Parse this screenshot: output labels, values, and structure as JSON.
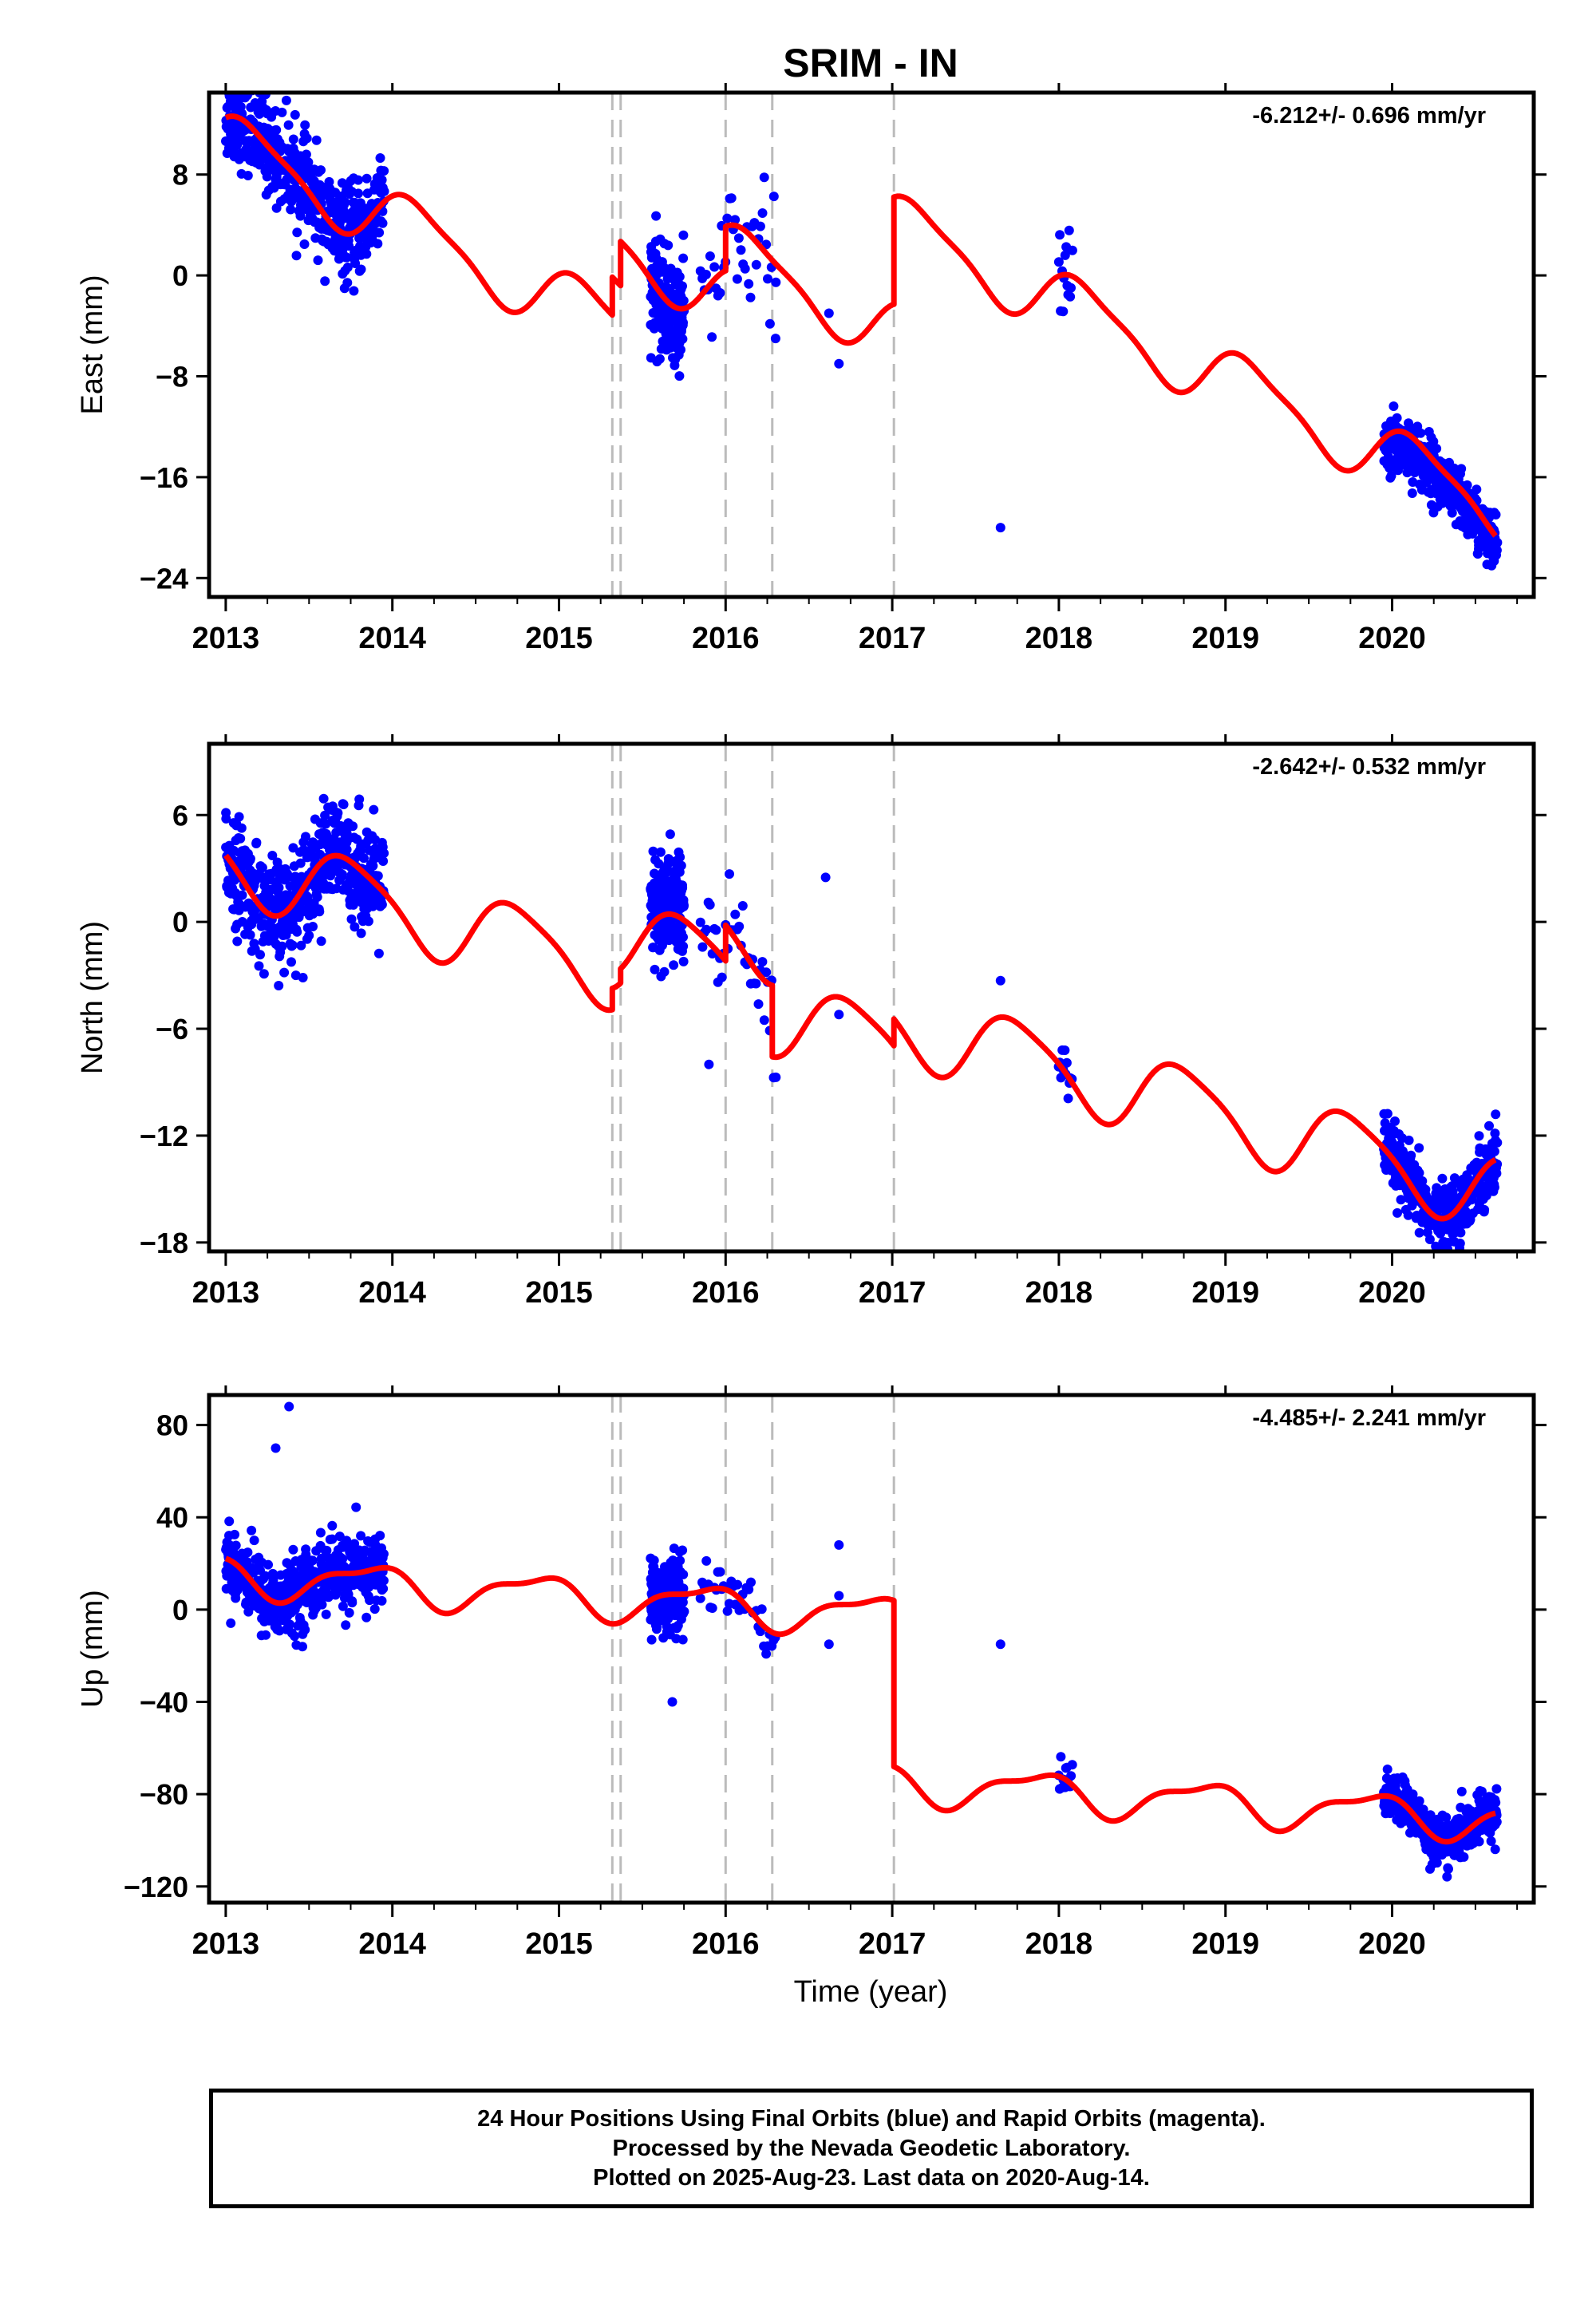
{
  "title": "SRIM - IN",
  "xlabel": "Time (year)",
  "footer": {
    "line1": "24 Hour Positions Using Final Orbits (blue) and Rapid Orbits (magenta).",
    "line2": "Processed by the Nevada Geodetic Laboratory.",
    "line3": "Plotted on 2025-Aug-23. Last data on 2020-Aug-14."
  },
  "colors": {
    "final_orbits": "#0000ff",
    "rapid_orbits": "#ff00ff",
    "model": "#ff0000",
    "event_lines": "#bbbbbb"
  },
  "chart_data": [
    {
      "type": "scatter",
      "component": "east",
      "ylabel": "East (mm)",
      "rate_text": "-6.212+/- 0.696 mm/yr",
      "xlim": [
        2012.9,
        2020.85
      ],
      "ylim": [
        -25.5,
        14.5
      ],
      "xticks": [
        2013,
        2014,
        2015,
        2016,
        2017,
        2018,
        2019,
        2020
      ],
      "yticks": [
        8,
        0,
        -8,
        -16,
        -24
      ],
      "event_lines": [
        2015.32,
        2015.37,
        2016.0,
        2016.28,
        2017.01
      ],
      "trend": -6.212,
      "amp1": 2.4,
      "phase1": 0.2,
      "amp2": 0.6,
      "phase2": 0.5,
      "offsets": [
        [
          2015.32,
          3.0
        ],
        [
          2015.37,
          3.5
        ],
        [
          2016.0,
          3.5
        ],
        [
          2016.28,
          0.0
        ],
        [
          2017.01,
          8.5
        ]
      ],
      "base_value": 10.5,
      "outliers": [
        [
          2017.65,
          -20.0
        ],
        [
          2016.68,
          -7.0
        ],
        [
          2016.62,
          -3.0
        ],
        [
          2016.3,
          -5.0
        ]
      ],
      "segments": [
        {
          "start": 2013.0,
          "end": 2013.95,
          "n": 520,
          "noise": 1.8,
          "bias": 0
        },
        {
          "start": 2015.55,
          "end": 2015.75,
          "n": 200,
          "noise": 2.0,
          "bias": -0.5
        },
        {
          "start": 2015.85,
          "end": 2016.3,
          "n": 40,
          "noise": 2.5,
          "bias": 0
        },
        {
          "start": 2018.0,
          "end": 2018.08,
          "n": 14,
          "noise": 1.6,
          "bias": 0
        },
        {
          "start": 2019.95,
          "end": 2020.63,
          "n": 420,
          "noise": 1.2,
          "bias": -1.0
        }
      ]
    },
    {
      "type": "scatter",
      "component": "north",
      "ylabel": "North (mm)",
      "rate_text": "-2.642+/- 0.532 mm/yr",
      "xlim": [
        2012.9,
        2020.85
      ],
      "ylim": [
        -18.5,
        10.0
      ],
      "xticks": [
        2013,
        2014,
        2015,
        2016,
        2017,
        2018,
        2019,
        2020
      ],
      "yticks": [
        6,
        0,
        -6,
        -12,
        -18
      ],
      "event_lines": [
        2015.32,
        2015.37,
        2016.0,
        2016.28,
        2017.01
      ],
      "trend": -2.642,
      "amp1": 2.1,
      "phase1": 1.0,
      "amp2": 0.4,
      "phase2": 0.2,
      "offsets": [
        [
          2015.32,
          1.2
        ],
        [
          2015.37,
          0.8
        ],
        [
          2016.0,
          2.0
        ],
        [
          2016.28,
          -4.0
        ],
        [
          2017.01,
          1.5
        ]
      ],
      "base_value": 3.5,
      "outliers": [
        [
          2016.6,
          2.5
        ],
        [
          2015.9,
          -8.0
        ],
        [
          2017.65,
          -3.3
        ],
        [
          2016.68,
          -5.2
        ]
      ],
      "segments": [
        {
          "start": 2013.0,
          "end": 2013.95,
          "n": 520,
          "noise": 1.5,
          "bias": 0
        },
        {
          "start": 2015.55,
          "end": 2015.75,
          "n": 200,
          "noise": 1.6,
          "bias": 0.5
        },
        {
          "start": 2015.85,
          "end": 2016.3,
          "n": 40,
          "noise": 1.5,
          "bias": 0
        },
        {
          "start": 2018.0,
          "end": 2018.08,
          "n": 14,
          "noise": 0.8,
          "bias": 0
        },
        {
          "start": 2019.95,
          "end": 2020.63,
          "n": 420,
          "noise": 0.9,
          "bias": 0
        }
      ]
    },
    {
      "type": "scatter",
      "component": "up",
      "ylabel": "Up (mm)",
      "rate_text": "-4.485+/- 2.241 mm/yr",
      "xlim": [
        2012.9,
        2020.85
      ],
      "ylim": [
        -127,
        93
      ],
      "xticks": [
        2013,
        2014,
        2015,
        2016,
        2017,
        2018,
        2019,
        2020
      ],
      "yticks": [
        80,
        40,
        0,
        -40,
        -80,
        -120
      ],
      "event_lines": [
        2015.32,
        2015.37,
        2016.0,
        2016.28,
        2017.01
      ],
      "trend": -4.485,
      "amp1": 8.0,
      "phase1": 0.8,
      "amp2": 3.0,
      "phase2": 0.3,
      "offsets": [
        [
          2015.32,
          0.0
        ],
        [
          2015.37,
          0.0
        ],
        [
          2016.0,
          0.0
        ],
        [
          2016.28,
          0.0
        ],
        [
          2017.01,
          -72.0
        ]
      ],
      "base_value": 15,
      "outliers": [
        [
          2013.38,
          88
        ],
        [
          2013.3,
          70
        ],
        [
          2016.68,
          28
        ],
        [
          2016.68,
          6
        ],
        [
          2017.65,
          -15
        ],
        [
          2015.68,
          -40
        ],
        [
          2016.62,
          -15
        ]
      ],
      "segments": [
        {
          "start": 2013.0,
          "end": 2013.95,
          "n": 520,
          "noise": 8.0,
          "bias": 0
        },
        {
          "start": 2015.55,
          "end": 2015.75,
          "n": 200,
          "noise": 8.0,
          "bias": 0
        },
        {
          "start": 2015.85,
          "end": 2016.3,
          "n": 40,
          "noise": 6.0,
          "bias": 0
        },
        {
          "start": 2018.0,
          "end": 2018.08,
          "n": 14,
          "noise": 4.0,
          "bias": 0
        },
        {
          "start": 2019.95,
          "end": 2020.63,
          "n": 420,
          "noise": 5.0,
          "bias": 0
        }
      ]
    }
  ]
}
